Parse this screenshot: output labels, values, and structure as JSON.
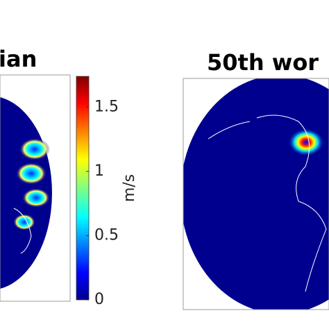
{
  "panels": [
    {
      "title": "ian"
    },
    {
      "title": "50th wor"
    }
  ],
  "colorbar": {
    "label": "m/s",
    "lim": [
      0,
      1.74
    ],
    "ticks": [
      0,
      0.5,
      1,
      1.5
    ]
  }
}
